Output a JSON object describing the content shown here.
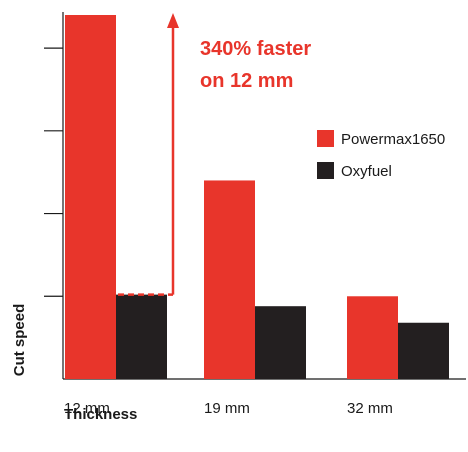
{
  "chart_data": {
    "type": "bar",
    "categories": [
      "12 mm",
      "19 mm",
      "32 mm"
    ],
    "series": [
      {
        "name": "Powermax1650",
        "values": [
          4.4,
          2.4,
          1.0
        ],
        "color": "#e8352b"
      },
      {
        "name": "Oxyfuel",
        "values": [
          1.02,
          0.88,
          0.68
        ],
        "color": "#231f20"
      }
    ],
    "xlabel": "Thickness",
    "ylabel": "Cut speed",
    "ylim": [
      0,
      4.4
    ],
    "y_ticks": [
      1,
      2,
      3,
      4
    ],
    "y_tick_labels_shown": false,
    "grid": false,
    "legend_position": "right",
    "annotation": {
      "line1": "340% faster",
      "line2": "on 12 mm",
      "category": "12 mm",
      "from_value": 1.02
    }
  }
}
